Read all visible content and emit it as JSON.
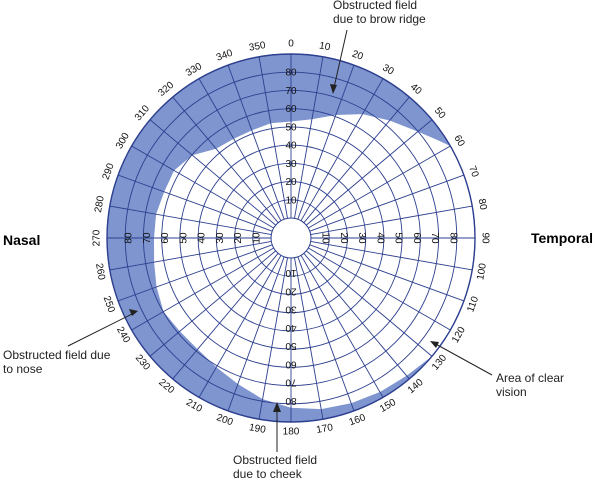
{
  "side_labels": {
    "left": "Nasal",
    "right": "Temporal"
  },
  "annotations": {
    "brow_line1": "Obstructed field",
    "brow_line2": "due to brow ridge",
    "nose_line1": "Obstructed field due",
    "nose_line2": "to nose",
    "cheek_line1": "Obstructed field",
    "cheek_line2": "due to cheek",
    "clear_line1": "Area of clear",
    "clear_line2": "vision"
  },
  "angle_labels": [
    "0",
    "10",
    "20",
    "30",
    "40",
    "50",
    "60",
    "70",
    "80",
    "90",
    "100",
    "110",
    "120",
    "130",
    "140",
    "150",
    "160",
    "170",
    "180",
    "190",
    "200",
    "210",
    "220",
    "230",
    "240",
    "250",
    "260",
    "270",
    "280",
    "290",
    "300",
    "310",
    "320",
    "330",
    "340",
    "350"
  ],
  "radial_labels": [
    "10",
    "20",
    "30",
    "40",
    "50",
    "60",
    "70",
    "80"
  ],
  "colors": {
    "obstructed": "#7f95cf",
    "grid": "#2d3f8f",
    "clear": "#ffffff",
    "outline": "#2d3f8f"
  }
}
